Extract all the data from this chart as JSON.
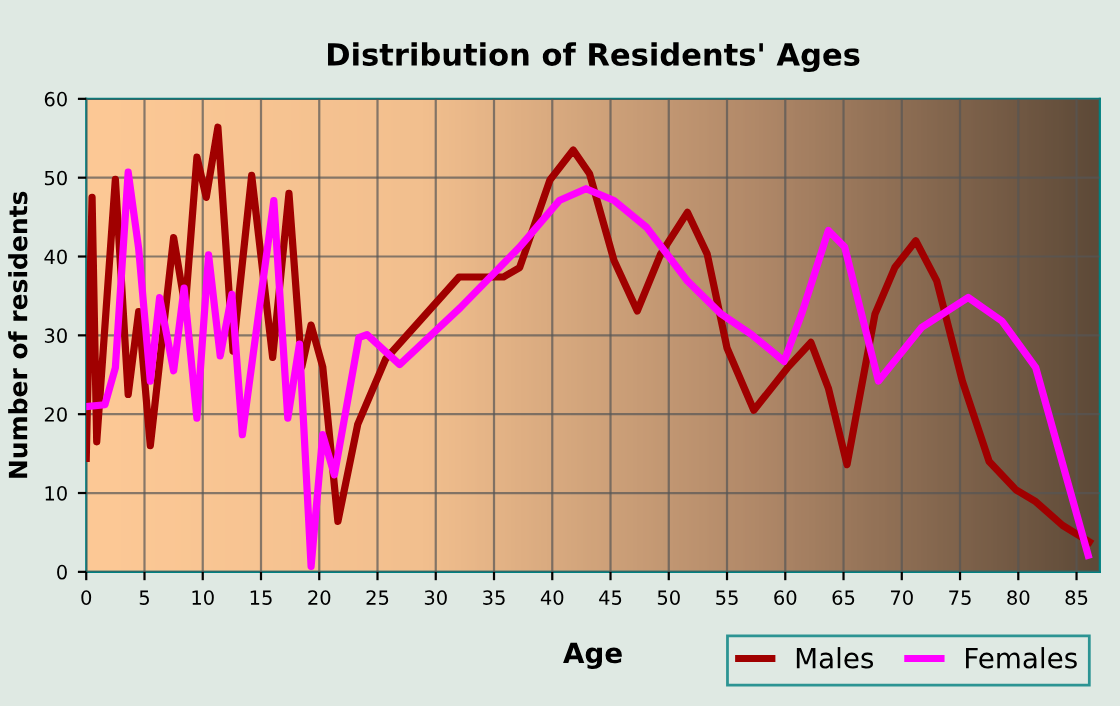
{
  "chart_data": {
    "type": "line",
    "title": "Distribution of Residents' Ages",
    "xlabel": "Age",
    "ylabel": "Number of residents",
    "xlim": [
      0,
      87
    ],
    "xticks": [
      0,
      5,
      10,
      15,
      20,
      25,
      30,
      35,
      40,
      45,
      50,
      55,
      60,
      65,
      70,
      75,
      80,
      85
    ],
    "ylim": [
      0,
      60
    ],
    "yticks": [
      0,
      10,
      20,
      30,
      40,
      50,
      60
    ],
    "grid": true,
    "legend": "bottom right",
    "marker": "none",
    "line_style": "solid",
    "series": [
      {
        "name": "Males",
        "color": "#a00000",
        "x": [
          0,
          0.5,
          0.9,
          2.5,
          3.6,
          4.5,
          5.5,
          7.5,
          8.5,
          9.5,
          10.3,
          11.3,
          12.6,
          14.2,
          16,
          17.4,
          18.5,
          19.3,
          20.3,
          21.6,
          23.3,
          25.7,
          32,
          35.8,
          37.2,
          39.8,
          41.8,
          43.2,
          45.3,
          47.3,
          49.3,
          51.6,
          53.3,
          55,
          57.3,
          60.2,
          62.2,
          63.7,
          65.3,
          67.7,
          69.4,
          71.2,
          73,
          75.2,
          77.5,
          79.8,
          81.5,
          83.8,
          86.1
        ],
        "values": [
          14.4,
          47.5,
          16.5,
          49.8,
          22.5,
          33,
          16,
          42.4,
          33.5,
          52.6,
          47.5,
          56.4,
          28,
          50.3,
          27.2,
          48,
          26,
          31.3,
          26,
          6.4,
          18.7,
          27,
          37.4,
          37.4,
          38.6,
          49.7,
          53.5,
          50.5,
          39.5,
          33.1,
          40.3,
          45.6,
          40.3,
          28.4,
          20.5,
          25.9,
          29.1,
          23.3,
          13.6,
          32.7,
          38.6,
          42,
          36.9,
          24.2,
          14,
          10.4,
          8.9,
          5.9,
          3.8
        ]
      },
      {
        "name": "Females",
        "color": "#ff00ff",
        "x": [
          0.2,
          1.6,
          2.5,
          3.6,
          4.5,
          5.5,
          6.3,
          7.5,
          8.4,
          9.5,
          10.5,
          11.5,
          12.5,
          13.4,
          16.1,
          17.3,
          18.3,
          19.3,
          20.3,
          21.3,
          23.4,
          24.1,
          26.9,
          32.1,
          37.2,
          40.6,
          42.9,
          45.3,
          48.1,
          51.6,
          54.5,
          57.1,
          59.9,
          61.4,
          63.7,
          65.1,
          68,
          71.7,
          75.7,
          78.6,
          81.5,
          86
        ],
        "values": [
          21,
          21.2,
          25.9,
          50.7,
          41,
          24.2,
          34.8,
          25.5,
          36,
          19.5,
          40.2,
          27.4,
          35.2,
          17.4,
          47.1,
          19.5,
          28.9,
          0.7,
          17.4,
          12.3,
          29.7,
          30.1,
          26.3,
          33.5,
          41.2,
          47.1,
          48.6,
          47.1,
          43.7,
          36.9,
          32.7,
          30.1,
          26.7,
          32.7,
          43.3,
          41.2,
          24.2,
          31,
          34.8,
          31.8,
          25.9,
          2.1
        ]
      }
    ]
  }
}
